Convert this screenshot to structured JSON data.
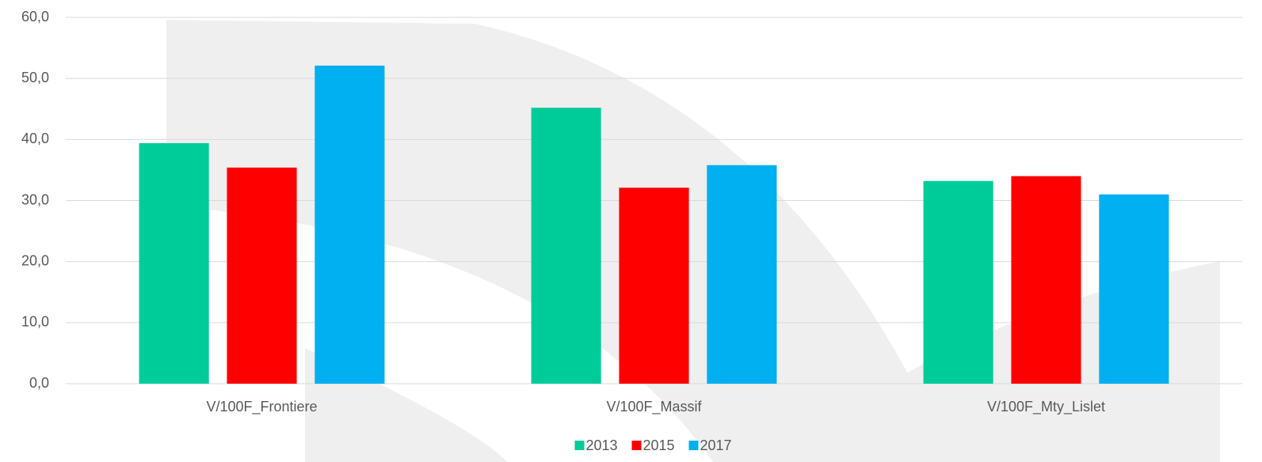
{
  "chart_data": {
    "type": "bar",
    "categories": [
      "V/100F_Frontiere",
      "V/100F_Massif",
      "V/100F_Mty_Lislet"
    ],
    "series": [
      {
        "name": "2013",
        "color": "#00cc99",
        "values": [
          39.4,
          45.2,
          33.2
        ]
      },
      {
        "name": "2015",
        "color": "#ff0000",
        "values": [
          35.4,
          32.1,
          34.0
        ]
      },
      {
        "name": "2017",
        "color": "#00b0f0",
        "values": [
          52.1,
          35.8,
          31.0
        ]
      }
    ],
    "ylim": [
      0,
      60
    ],
    "yticks": [
      {
        "value": 0,
        "label": "0,0"
      },
      {
        "value": 10,
        "label": "10,0"
      },
      {
        "value": 20,
        "label": "20,0"
      },
      {
        "value": 30,
        "label": "30,0"
      },
      {
        "value": 40,
        "label": "40,0"
      },
      {
        "value": 50,
        "label": "50,0"
      },
      {
        "value": 60,
        "label": "60,0"
      }
    ],
    "grid": true,
    "legend": "bottom"
  }
}
